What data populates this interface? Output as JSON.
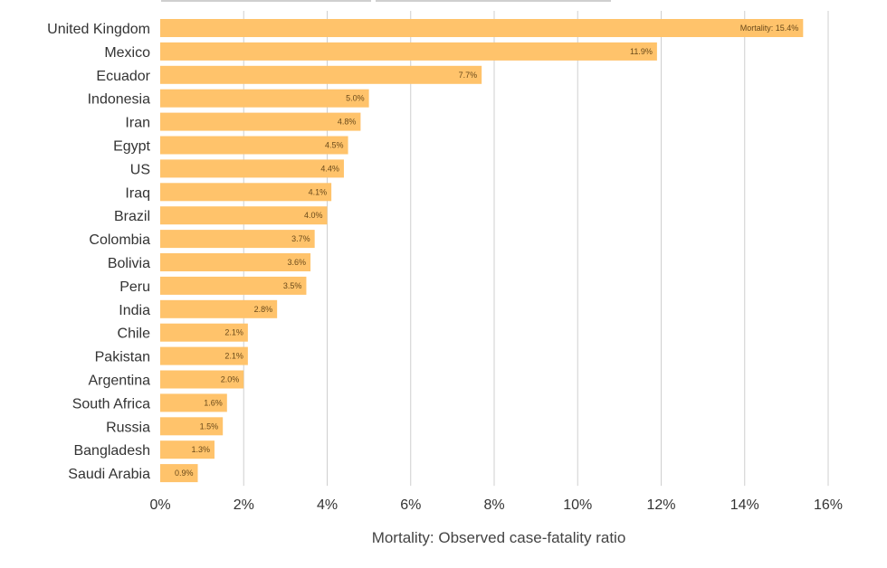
{
  "chart_data": {
    "type": "bar",
    "orientation": "horizontal",
    "title": "",
    "xlabel": "Mortality: Observed case-fatality ratio",
    "ylabel": "",
    "xlim": [
      0,
      16
    ],
    "x_ticks": [
      0,
      2,
      4,
      6,
      8,
      10,
      12,
      14,
      16
    ],
    "x_tick_labels": [
      "0%",
      "2%",
      "4%",
      "6%",
      "8%",
      "10%",
      "12%",
      "14%",
      "16%"
    ],
    "grid": "vertical",
    "bar_color": "#ffc36b",
    "categories": [
      "United Kingdom",
      "Mexico",
      "Ecuador",
      "Indonesia",
      "Iran",
      "Egypt",
      "US",
      "Iraq",
      "Brazil",
      "Colombia",
      "Bolivia",
      "Peru",
      "India",
      "Chile",
      "Pakistan",
      "Argentina",
      "South Africa",
      "Russia",
      "Bangladesh",
      "Saudi Arabia"
    ],
    "values": [
      15.4,
      11.9,
      7.7,
      5.0,
      4.8,
      4.5,
      4.4,
      4.1,
      4.0,
      3.7,
      3.6,
      3.5,
      2.8,
      2.1,
      2.1,
      2.0,
      1.6,
      1.5,
      1.3,
      0.9
    ],
    "data_labels": [
      "Mortality: 15.4%",
      "11.9%",
      "7.7%",
      "5.0%",
      "4.8%",
      "4.5%",
      "4.4%",
      "4.1%",
      "4.0%",
      "3.7%",
      "3.6%",
      "3.5%",
      "2.8%",
      "2.1%",
      "2.1%",
      "2.0%",
      "1.6%",
      "1.5%",
      "1.3%",
      "0.9%"
    ]
  }
}
